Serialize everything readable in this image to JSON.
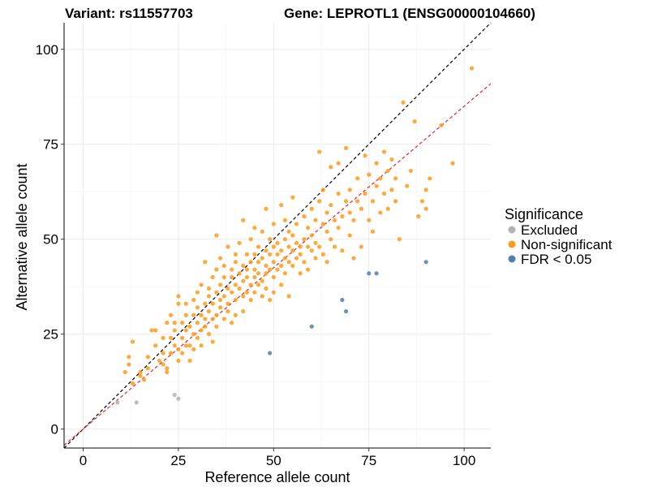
{
  "titles": {
    "variant": "Variant: rs11557703",
    "gene": "Gene: LEPROTL1 (ENSG00000104660)"
  },
  "legend": {
    "title": "Significance",
    "items": [
      {
        "label": "Excluded",
        "color": "#b3b3b3"
      },
      {
        "label": "Non-significant",
        "color": "#ff9a1a"
      },
      {
        "label": "FDR < 0.05",
        "color": "#4f7fb0"
      }
    ]
  },
  "chart_data": {
    "type": "scatter",
    "xlabel": "Reference allele count",
    "ylabel": "Alternative allele count",
    "xlim": [
      -5,
      107
    ],
    "ylim": [
      -5,
      107
    ],
    "xticks": [
      0,
      25,
      50,
      75,
      100
    ],
    "yticks": [
      0,
      25,
      50,
      75,
      100
    ],
    "grid": true,
    "reference_lines": [
      {
        "name": "identity",
        "slope": 1.0,
        "intercept": 0,
        "color": "#000000",
        "style": "dashed"
      },
      {
        "name": "fit",
        "slope": 0.85,
        "intercept": 0,
        "color": "#e8232a",
        "style": "dashed"
      }
    ],
    "series": [
      {
        "name": "Excluded",
        "color": "#b3b3b3",
        "points": [
          [
            9,
            7
          ],
          [
            14,
            7
          ],
          [
            24,
            9
          ],
          [
            25,
            8
          ]
        ]
      },
      {
        "name": "FDR < 0.05",
        "color": "#4f7fb0",
        "points": [
          [
            49,
            20
          ],
          [
            60,
            27
          ],
          [
            68,
            34
          ],
          [
            69,
            31
          ],
          [
            75,
            41
          ],
          [
            77,
            41
          ],
          [
            90,
            44
          ]
        ]
      },
      {
        "name": "Non-significant",
        "color": "#ff9a1a",
        "points": [
          [
            11,
            15
          ],
          [
            12,
            19
          ],
          [
            12,
            17
          ],
          [
            13,
            23
          ],
          [
            13,
            12
          ],
          [
            15,
            15
          ],
          [
            15,
            14
          ],
          [
            16,
            13
          ],
          [
            17,
            19
          ],
          [
            17,
            16
          ],
          [
            18,
            26
          ],
          [
            19,
            26
          ],
          [
            19,
            22
          ],
          [
            20,
            18
          ],
          [
            21,
            24
          ],
          [
            21,
            20
          ],
          [
            21,
            17
          ],
          [
            22,
            16
          ],
          [
            22,
            28
          ],
          [
            22,
            15
          ],
          [
            23,
            24
          ],
          [
            23,
            20
          ],
          [
            23,
            30
          ],
          [
            24,
            22
          ],
          [
            24,
            26
          ],
          [
            24,
            28
          ],
          [
            25,
            18
          ],
          [
            25,
            33
          ],
          [
            25,
            21
          ],
          [
            25,
            35
          ],
          [
            26,
            28
          ],
          [
            26,
            24
          ],
          [
            26,
            20
          ],
          [
            27,
            30
          ],
          [
            27,
            22
          ],
          [
            27,
            26
          ],
          [
            27,
            33
          ],
          [
            28,
            27
          ],
          [
            28,
            22
          ],
          [
            28,
            18
          ],
          [
            29,
            30
          ],
          [
            29,
            34
          ],
          [
            29,
            25
          ],
          [
            29,
            21
          ],
          [
            30,
            28
          ],
          [
            30,
            32
          ],
          [
            30,
            36
          ],
          [
            30,
            24
          ],
          [
            31,
            26
          ],
          [
            31,
            38
          ],
          [
            31,
            30
          ],
          [
            31,
            22
          ],
          [
            32,
            29
          ],
          [
            32,
            33
          ],
          [
            32,
            27
          ],
          [
            32,
            44
          ],
          [
            33,
            31
          ],
          [
            33,
            35
          ],
          [
            33,
            25
          ],
          [
            33,
            37
          ],
          [
            34,
            29
          ],
          [
            34,
            40
          ],
          [
            34,
            33
          ],
          [
            34,
            23
          ],
          [
            35,
            36
          ],
          [
            35,
            30
          ],
          [
            35,
            42
          ],
          [
            35,
            27
          ],
          [
            35,
            51
          ],
          [
            36,
            34
          ],
          [
            36,
            38
          ],
          [
            36,
            32
          ],
          [
            36,
            45
          ],
          [
            37,
            40
          ],
          [
            37,
            29
          ],
          [
            37,
            35
          ],
          [
            37,
            43
          ],
          [
            38,
            37
          ],
          [
            38,
            33
          ],
          [
            38,
            48
          ],
          [
            38,
            31
          ],
          [
            39,
            40
          ],
          [
            39,
            36
          ],
          [
            39,
            42
          ],
          [
            39,
            28
          ],
          [
            40,
            38
          ],
          [
            40,
            44
          ],
          [
            40,
            34
          ],
          [
            40,
            46
          ],
          [
            40,
            30
          ],
          [
            41,
            41
          ],
          [
            41,
            37
          ],
          [
            41,
            49
          ],
          [
            42,
            39
          ],
          [
            42,
            43
          ],
          [
            42,
            35
          ],
          [
            42,
            55
          ],
          [
            42,
            31
          ],
          [
            43,
            40
          ],
          [
            43,
            46
          ],
          [
            43,
            36
          ],
          [
            43,
            42
          ],
          [
            44,
            44
          ],
          [
            44,
            38
          ],
          [
            44,
            50
          ],
          [
            44,
            34
          ],
          [
            45,
            42
          ],
          [
            45,
            46
          ],
          [
            45,
            40
          ],
          [
            45,
            53
          ],
          [
            45,
            36
          ],
          [
            46,
            44
          ],
          [
            46,
            48
          ],
          [
            46,
            38
          ],
          [
            46,
            41
          ],
          [
            47,
            45
          ],
          [
            47,
            39
          ],
          [
            47,
            52
          ],
          [
            47,
            35
          ],
          [
            48,
            43
          ],
          [
            48,
            47
          ],
          [
            48,
            41
          ],
          [
            48,
            58
          ],
          [
            48,
            37
          ],
          [
            49,
            46
          ],
          [
            49,
            42
          ],
          [
            49,
            50
          ],
          [
            49,
            34
          ],
          [
            50,
            44
          ],
          [
            50,
            48
          ],
          [
            50,
            40
          ],
          [
            50,
            54
          ],
          [
            50,
            36
          ],
          [
            51,
            46
          ],
          [
            51,
            42
          ],
          [
            51,
            49
          ],
          [
            52,
            47
          ],
          [
            52,
            43
          ],
          [
            52,
            59
          ],
          [
            52,
            38
          ],
          [
            53,
            45
          ],
          [
            53,
            50
          ],
          [
            53,
            41
          ],
          [
            53,
            55
          ],
          [
            54,
            48
          ],
          [
            54,
            44
          ],
          [
            54,
            52
          ],
          [
            54,
            35
          ],
          [
            55,
            47
          ],
          [
            55,
            51
          ],
          [
            55,
            43
          ],
          [
            55,
            61
          ],
          [
            56,
            49
          ],
          [
            56,
            45
          ],
          [
            56,
            54
          ],
          [
            57,
            48
          ],
          [
            57,
            46
          ],
          [
            57,
            41
          ],
          [
            58,
            50
          ],
          [
            58,
            56
          ],
          [
            58,
            44
          ],
          [
            59,
            48
          ],
          [
            59,
            53
          ],
          [
            59,
            42
          ],
          [
            60,
            47
          ],
          [
            60,
            51
          ],
          [
            60,
            58
          ],
          [
            61,
            49
          ],
          [
            61,
            45
          ],
          [
            61,
            55
          ],
          [
            62,
            60
          ],
          [
            62,
            48
          ],
          [
            62,
            73
          ],
          [
            63,
            54
          ],
          [
            63,
            63
          ],
          [
            63,
            46
          ],
          [
            64,
            52
          ],
          [
            64,
            57
          ],
          [
            64,
            44
          ],
          [
            65,
            50
          ],
          [
            65,
            59
          ],
          [
            65,
            69
          ],
          [
            66,
            48
          ],
          [
            66,
            55
          ],
          [
            67,
            53
          ],
          [
            67,
            62
          ],
          [
            67,
            70
          ],
          [
            68,
            56
          ],
          [
            68,
            47
          ],
          [
            69,
            60
          ],
          [
            69,
            74
          ],
          [
            70,
            51
          ],
          [
            70,
            57
          ],
          [
            70,
            63
          ],
          [
            71,
            45
          ],
          [
            71,
            55
          ],
          [
            72,
            60
          ],
          [
            72,
            66
          ],
          [
            73,
            48
          ],
          [
            73,
            58
          ],
          [
            74,
            62
          ],
          [
            74,
            72
          ],
          [
            75,
            55
          ],
          [
            75,
            67
          ],
          [
            76,
            60
          ],
          [
            76,
            52
          ],
          [
            77,
            64
          ],
          [
            77,
            70
          ],
          [
            78,
            57
          ],
          [
            78,
            66
          ],
          [
            79,
            73
          ],
          [
            79,
            62
          ],
          [
            80,
            58
          ],
          [
            80,
            68
          ],
          [
            81,
            63
          ],
          [
            81,
            71
          ],
          [
            82,
            60
          ],
          [
            82,
            66
          ],
          [
            83,
            50
          ],
          [
            84,
            86
          ],
          [
            85,
            64
          ],
          [
            86,
            68
          ],
          [
            87,
            81
          ],
          [
            88,
            56
          ],
          [
            89,
            60
          ],
          [
            90,
            63
          ],
          [
            90,
            58
          ],
          [
            91,
            66
          ],
          [
            94,
            80
          ],
          [
            97,
            70
          ],
          [
            102,
            95
          ]
        ]
      }
    ]
  }
}
